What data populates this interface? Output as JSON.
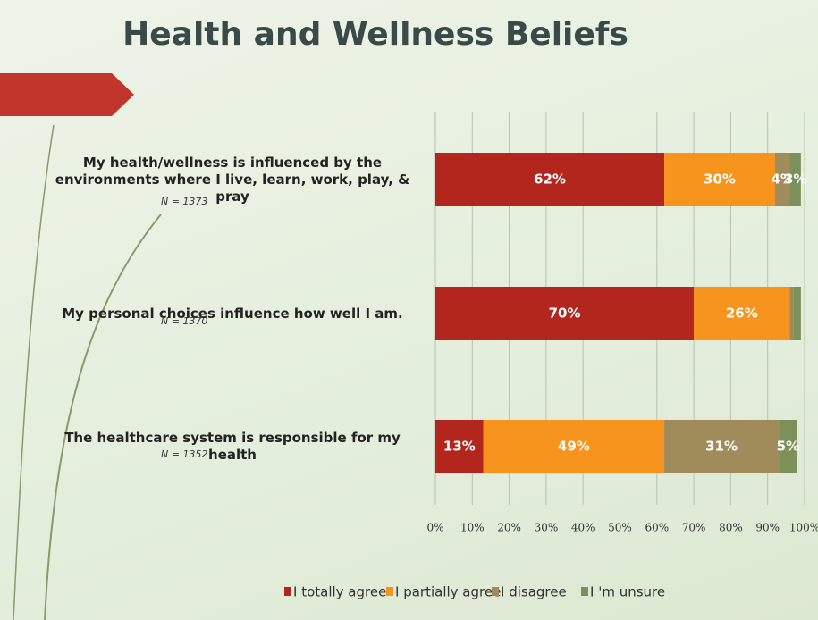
{
  "chart_data": {
    "type": "stacked-bar-horizontal",
    "title": "Health and Wellness Beliefs",
    "categories": [
      "My health/wellness is influenced by the environments where I  live, learn, work, play, & pray",
      "My personal choices influence how well I am.",
      "The healthcare system is responsible for my health"
    ],
    "annotations": [
      "N = 1373",
      "N = 1370",
      "N = 1352"
    ],
    "series": [
      {
        "name": "I totally agree",
        "color": "#b3261e",
        "values": [
          62,
          70,
          13
        ],
        "value_labels": [
          "62%",
          "70%",
          "13%"
        ]
      },
      {
        "name": "I partially agree",
        "color": "#f7941d",
        "values": [
          30,
          26,
          49
        ],
        "value_labels": [
          "30%",
          "26%",
          "49%"
        ]
      },
      {
        "name": "I disagree",
        "color": "#a08c5b",
        "values": [
          4,
          1,
          31
        ],
        "value_labels": [
          "4%",
          null,
          "31%"
        ]
      },
      {
        "name": "I 'm unsure",
        "color": "#7b9159",
        "values": [
          3,
          2,
          5
        ],
        "value_labels": [
          "3%",
          null,
          "5%"
        ]
      }
    ],
    "xlim": [
      0,
      100
    ],
    "xticks": [
      {
        "value": 0,
        "label": "0%"
      },
      {
        "value": 10,
        "label": "10%"
      },
      {
        "value": 20,
        "label": "20%"
      },
      {
        "value": 30,
        "label": "30%"
      },
      {
        "value": 40,
        "label": "40%"
      },
      {
        "value": 50,
        "label": "50%"
      },
      {
        "value": 60,
        "label": "60%"
      },
      {
        "value": 70,
        "label": "70%"
      },
      {
        "value": 80,
        "label": "80%"
      },
      {
        "value": 90,
        "label": "90%"
      },
      {
        "value": 100,
        "label": "100%"
      }
    ],
    "grid": true,
    "legend": "bottom"
  }
}
